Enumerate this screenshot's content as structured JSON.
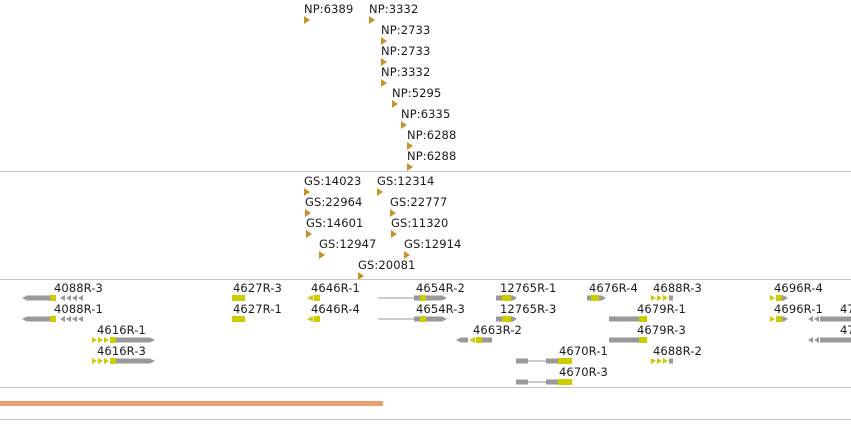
{
  "colors": {
    "marker": "#c8922a",
    "exon": "#cccc00",
    "body": "#999999",
    "progress": "#e8a070"
  },
  "np_track": {
    "items": [
      "NP:6389",
      "NP:3332",
      "NP:2733",
      "NP:2733",
      "NP:3332",
      "NP:5295",
      "NP:6335",
      "NP:6288",
      "NP:6288"
    ]
  },
  "gs_track": {
    "items": [
      "GS:14023",
      "GS:12314",
      "GS:22964",
      "GS:22777",
      "GS:14601",
      "GS:11320",
      "GS:12947",
      "GS:12914",
      "GS:20081"
    ]
  },
  "gene_track": {
    "items": [
      "4088R-3",
      "4088R-1",
      "4616R-1",
      "4616R-3",
      "4627R-3",
      "4627R-1",
      "4646R-1",
      "4646R-4",
      "4654R-2",
      "4654R-3",
      "12765R-1",
      "12765R-3",
      "4663R-2",
      "4670R-1",
      "4670R-3",
      "4676R-4",
      "4679R-1",
      "4679R-3",
      "4688R-3",
      "4688R-2",
      "4696R-4",
      "4696R-1",
      "47",
      "47"
    ]
  },
  "progress": {
    "fraction": 0.45
  }
}
